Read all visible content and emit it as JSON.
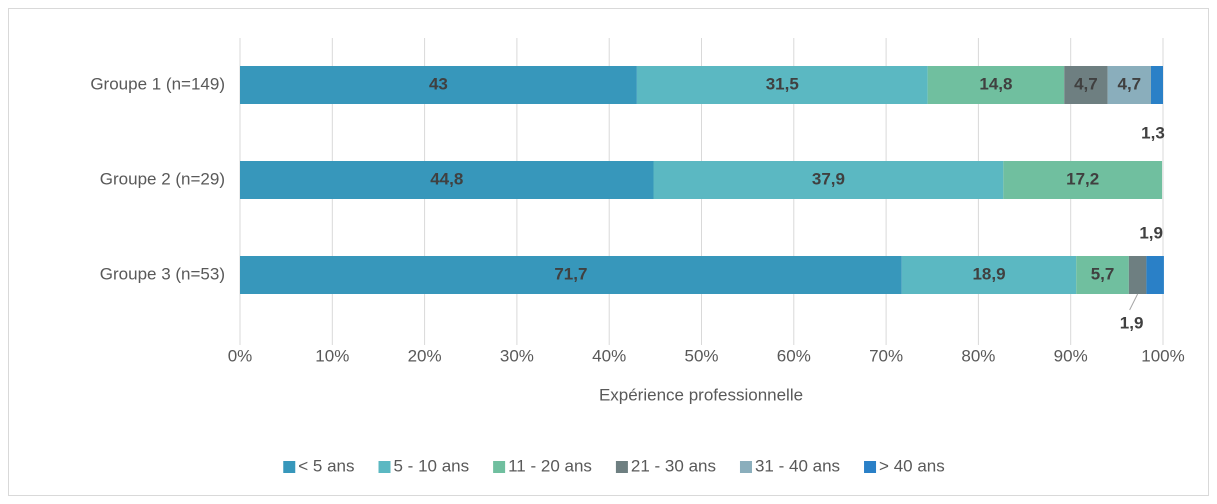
{
  "chart_data": {
    "type": "bar",
    "orientation": "horizontal",
    "stacked": true,
    "x_label": "Expérience professionnelle",
    "categories": [
      "Groupe 1 (n=149)",
      "Groupe 2 (n=29)",
      "Groupe 3 (n=53)"
    ],
    "series": [
      {
        "name": "< 5 ans",
        "color": "#3797bb",
        "values": [
          43,
          44.8,
          71.7
        ],
        "value_labels": [
          "43",
          "44,8",
          "71,7"
        ]
      },
      {
        "name": "5 - 10 ans",
        "color": "#5bb8c2",
        "values": [
          31.5,
          37.9,
          18.9
        ],
        "value_labels": [
          "31,5",
          "37,9",
          "18,9"
        ]
      },
      {
        "name": "11 - 20 ans",
        "color": "#70bf9f",
        "values": [
          14.8,
          17.2,
          5.7
        ],
        "value_labels": [
          "14,8",
          "17,2",
          "5,7"
        ]
      },
      {
        "name": "21 - 30 ans",
        "color": "#6e7f81",
        "values": [
          4.7,
          null,
          1.9
        ],
        "value_labels": [
          "4,7",
          null,
          "1,9"
        ]
      },
      {
        "name": "31 - 40 ans",
        "color": "#8aaebc",
        "values": [
          4.7,
          null,
          null
        ],
        "value_labels": [
          "4,7",
          null,
          null
        ]
      },
      {
        "name": "> 40 ans",
        "color": "#2a80c7",
        "values": [
          1.3,
          null,
          1.9
        ],
        "value_labels": [
          "1,3",
          null,
          "1,9"
        ]
      }
    ],
    "xlim": [
      0,
      100
    ],
    "xticks": [
      {
        "value": 0,
        "label": "0%"
      },
      {
        "value": 10,
        "label": "10%"
      },
      {
        "value": 20,
        "label": "20%"
      },
      {
        "value": 30,
        "label": "30%"
      },
      {
        "value": 40,
        "label": "40%"
      },
      {
        "value": 50,
        "label": "50%"
      },
      {
        "value": 60,
        "label": "60%"
      },
      {
        "value": 70,
        "label": "70%"
      },
      {
        "value": 80,
        "label": "80%"
      },
      {
        "value": 90,
        "label": "90%"
      },
      {
        "value": 100,
        "label": "100%"
      }
    ],
    "grid": true,
    "legend": "bottom"
  }
}
